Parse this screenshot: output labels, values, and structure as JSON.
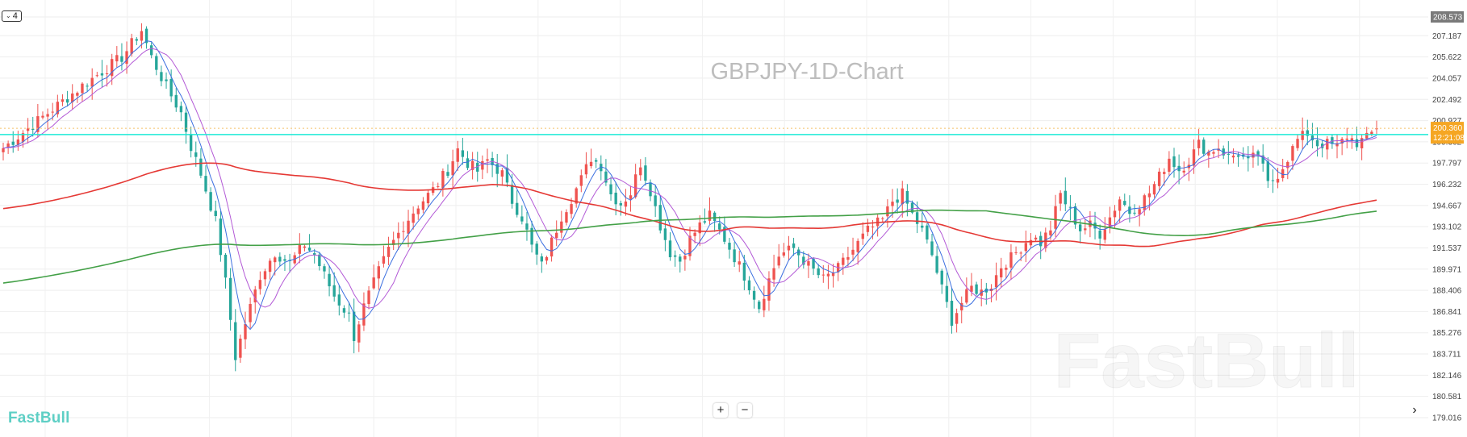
{
  "header": {
    "interval_label": "4",
    "chart_title": "GBPJPY-1D-Chart"
  },
  "branding": {
    "watermark": "FastBull",
    "logo": "FastBull"
  },
  "controls": {
    "zoom_in": "+",
    "zoom_out": "−",
    "scroll_right": "›"
  },
  "price_badge": {
    "price": "200.360",
    "countdown": "12:21:08",
    "color": "#f5a623"
  },
  "top_badge": {
    "price": "208.573",
    "color": "#7a7a7a"
  },
  "colors": {
    "up": "#ef5350",
    "down": "#26a69a",
    "ma_fast": "#3b6fe0",
    "ma_mid": "#b35ad6",
    "ma_100": "#e53935",
    "ma_200": "#43a047",
    "horizontal_line": "#1de9d6"
  },
  "chart_data": {
    "type": "candlestick",
    "title": "GBPJPY-1D-Chart",
    "y_ticks": [
      "208.573",
      "207.187",
      "205.622",
      "204.057",
      "202.492",
      "200.927",
      "199.362",
      "197.797",
      "196.232",
      "194.667",
      "193.102",
      "191.537",
      "189.971",
      "188.406",
      "186.841",
      "185.276",
      "183.711",
      "182.146",
      "180.581",
      "179.016"
    ],
    "ylim": [
      179.016,
      208.573
    ],
    "last_price": 200.36,
    "horizontal_line": 199.9,
    "grid": true,
    "anchors": [
      [
        0,
        198.9
      ],
      [
        8,
        201.2
      ],
      [
        16,
        203.5
      ],
      [
        24,
        205.6
      ],
      [
        28,
        207.6
      ],
      [
        30,
        205.6
      ],
      [
        33,
        203.4
      ],
      [
        36,
        201.5
      ],
      [
        38,
        199.0
      ],
      [
        40,
        197.0
      ],
      [
        43,
        193.5
      ],
      [
        45,
        189.0
      ],
      [
        47,
        183.5
      ],
      [
        49,
        186.0
      ],
      [
        52,
        189.5
      ],
      [
        55,
        191.2
      ],
      [
        58,
        190.4
      ],
      [
        61,
        191.8
      ],
      [
        63,
        191.0
      ],
      [
        65,
        189.5
      ],
      [
        67,
        188.0
      ],
      [
        69,
        187.0
      ],
      [
        70,
        186.5
      ],
      [
        71,
        185.0
      ],
      [
        73,
        187.2
      ],
      [
        76,
        189.8
      ],
      [
        78,
        191.4
      ],
      [
        81,
        193.2
      ],
      [
        84,
        194.7
      ],
      [
        87,
        195.8
      ],
      [
        90,
        197.3
      ],
      [
        92,
        198.8
      ],
      [
        94,
        197.8
      ],
      [
        96,
        197.2
      ],
      [
        98,
        198.0
      ],
      [
        101,
        197.0
      ],
      [
        103,
        195.0
      ],
      [
        105,
        193.8
      ],
      [
        107,
        191.6
      ],
      [
        109,
        190.2
      ],
      [
        111,
        192.0
      ],
      [
        113,
        193.9
      ],
      [
        115,
        195.2
      ],
      [
        117,
        196.6
      ],
      [
        119,
        198.2
      ],
      [
        121,
        197.6
      ],
      [
        123,
        195.5
      ],
      [
        125,
        194.8
      ],
      [
        127,
        195.6
      ],
      [
        129,
        197.8
      ],
      [
        131,
        195.8
      ],
      [
        133,
        193.2
      ],
      [
        135,
        191.2
      ],
      [
        137,
        190.6
      ],
      [
        139,
        192.2
      ],
      [
        141,
        193.2
      ],
      [
        143,
        193.9
      ],
      [
        146,
        192.2
      ],
      [
        149,
        190.2
      ],
      [
        151,
        188.8
      ],
      [
        153,
        187.2
      ],
      [
        155,
        189.2
      ],
      [
        157,
        191.0
      ],
      [
        160,
        191.5
      ],
      [
        163,
        190.2
      ],
      [
        166,
        189.2
      ],
      [
        169,
        190.0
      ],
      [
        172,
        191.4
      ],
      [
        175,
        192.8
      ],
      [
        178,
        193.6
      ],
      [
        180,
        195.0
      ],
      [
        182,
        195.5
      ],
      [
        184,
        194.0
      ],
      [
        186,
        192.8
      ],
      [
        188,
        191.0
      ],
      [
        190,
        188.5
      ],
      [
        192,
        186.2
      ],
      [
        194,
        187.5
      ],
      [
        196,
        188.6
      ],
      [
        198,
        188.3
      ],
      [
        200,
        188.8
      ],
      [
        202,
        190.2
      ],
      [
        204,
        190.8
      ],
      [
        206,
        191.6
      ],
      [
        208,
        192.4
      ],
      [
        210,
        191.9
      ],
      [
        212,
        193.0
      ],
      [
        214,
        195.5
      ],
      [
        216,
        194.2
      ],
      [
        218,
        192.9
      ],
      [
        220,
        193.2
      ],
      [
        222,
        192.6
      ],
      [
        224,
        193.8
      ],
      [
        226,
        195.2
      ],
      [
        228,
        194.2
      ],
      [
        230,
        194.8
      ],
      [
        232,
        195.6
      ],
      [
        234,
        196.8
      ],
      [
        236,
        198.2
      ],
      [
        238,
        197.3
      ],
      [
        240,
        198.0
      ],
      [
        242,
        199.2
      ],
      [
        244,
        198.6
      ],
      [
        246,
        199.0
      ],
      [
        248,
        198.2
      ],
      [
        250,
        198.5
      ],
      [
        252,
        197.8
      ],
      [
        254,
        198.5
      ],
      [
        256,
        196.2
      ],
      [
        258,
        197.0
      ],
      [
        260,
        198.2
      ],
      [
        262,
        199.5
      ],
      [
        264,
        200.0
      ],
      [
        266,
        199.2
      ],
      [
        268,
        199.2
      ],
      [
        270,
        199.0
      ],
      [
        272,
        199.8
      ],
      [
        274,
        199.3
      ],
      [
        276,
        199.6
      ],
      [
        278,
        200.4
      ]
    ],
    "moving_averages": [
      {
        "period": 5,
        "color": "#3b6fe0"
      },
      {
        "period": 9,
        "color": "#b35ad6"
      },
      {
        "period": 100,
        "color": "#e53935"
      },
      {
        "period": 200,
        "color": "#43a047"
      }
    ]
  }
}
